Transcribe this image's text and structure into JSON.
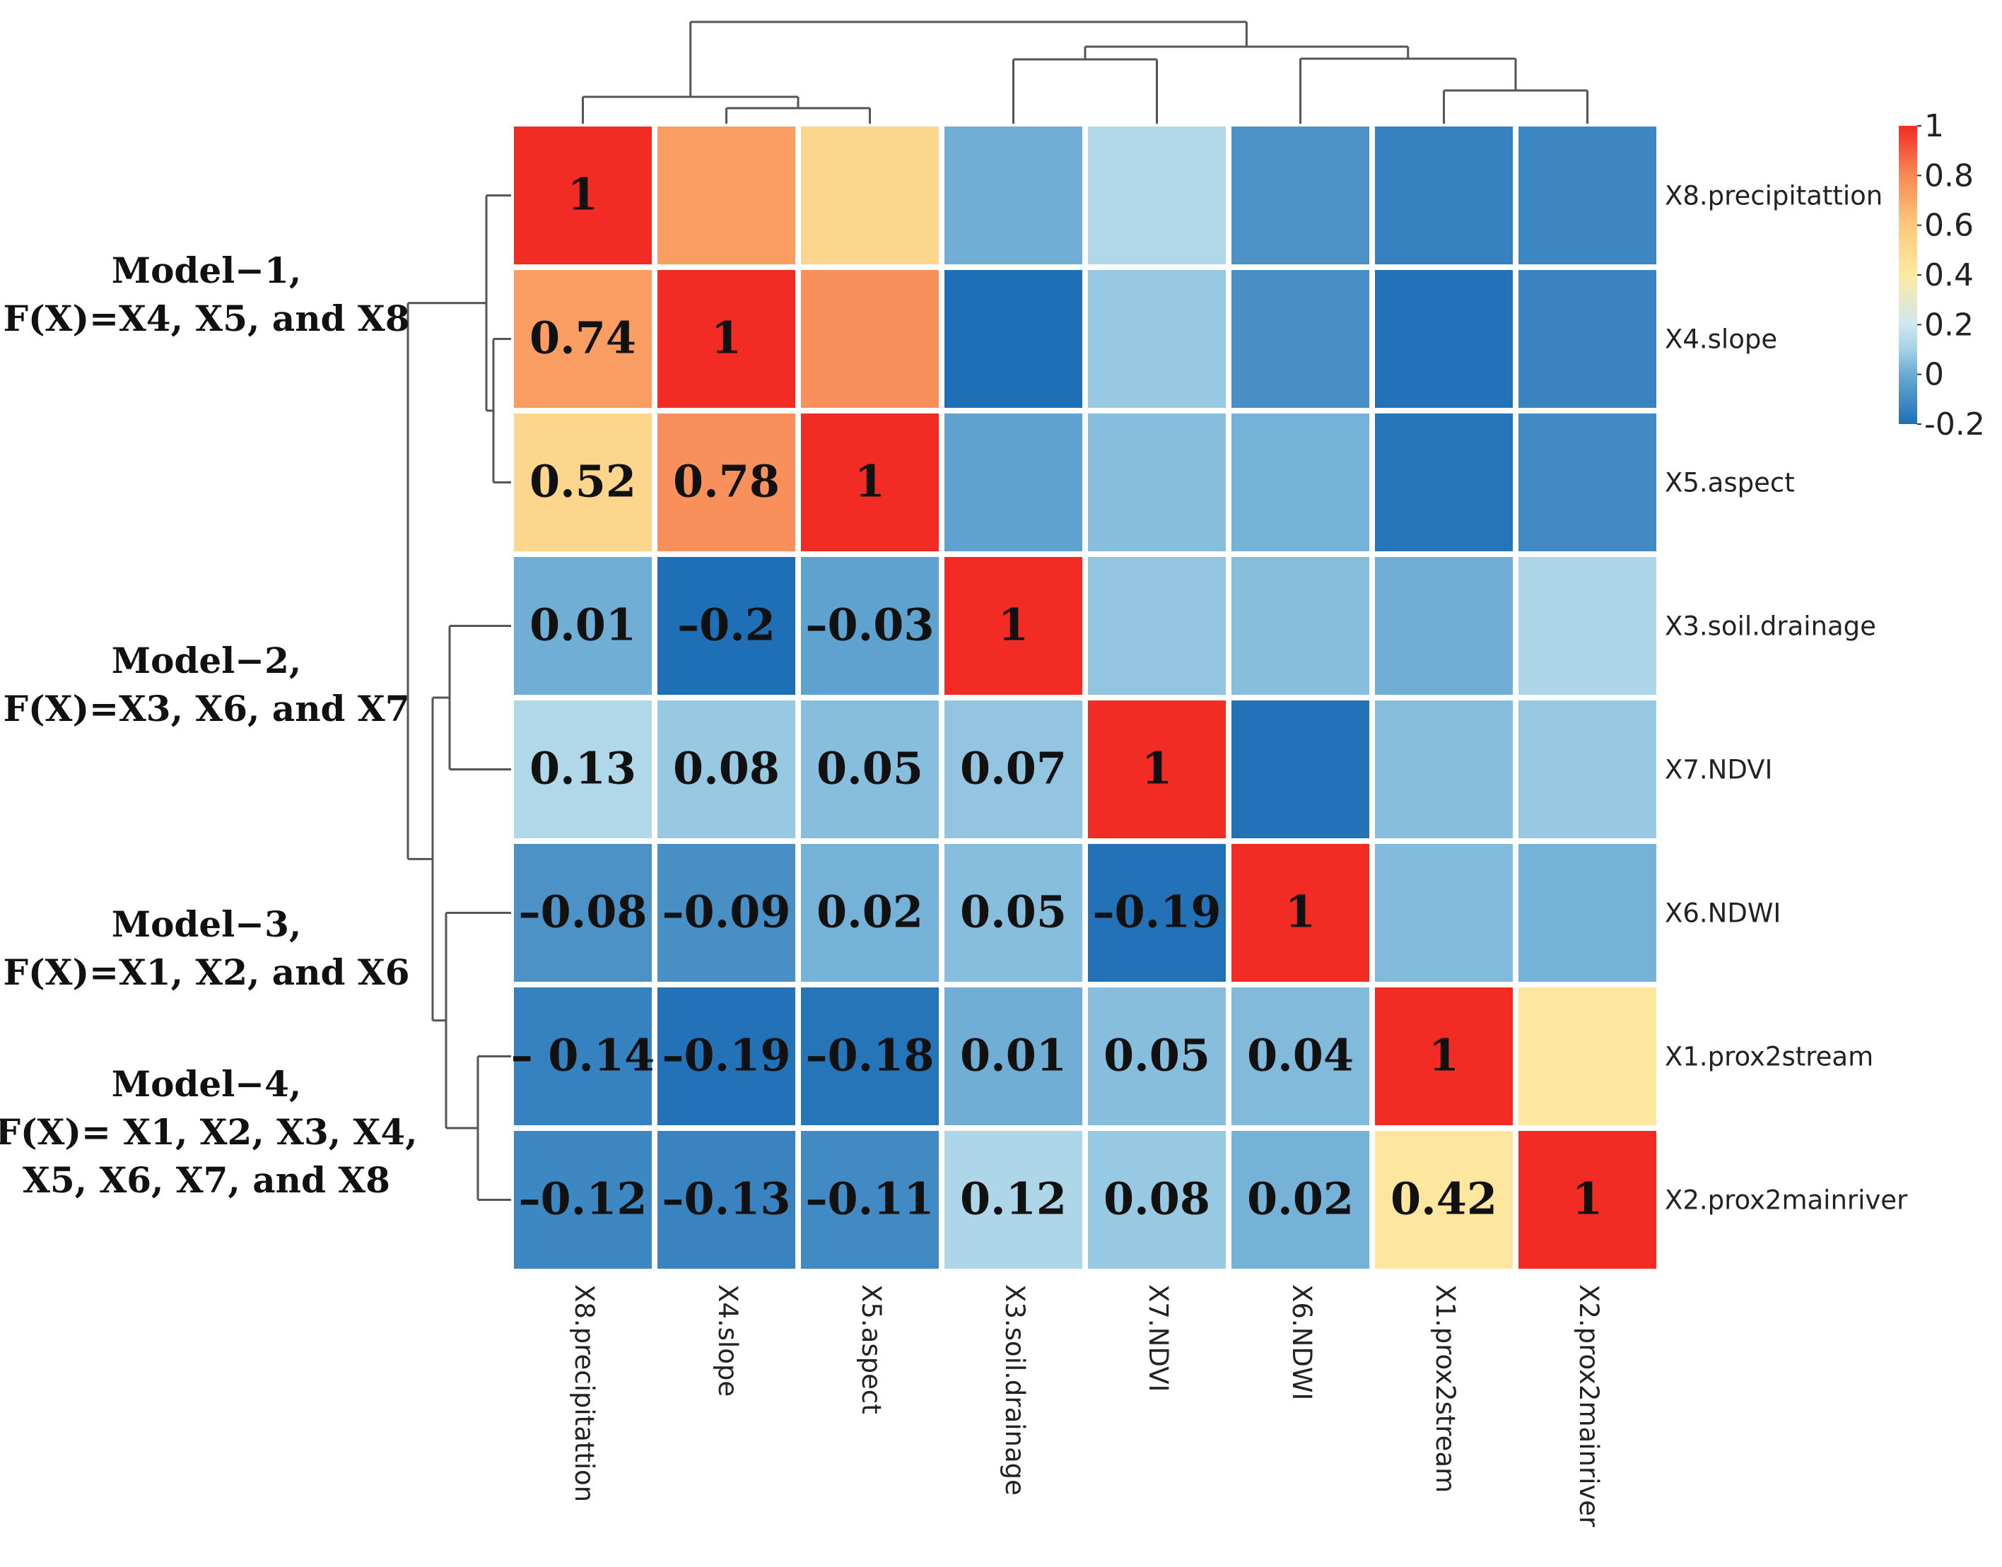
{
  "chart_data": {
    "type": "heatmap",
    "title": "",
    "row_labels": [
      "X8.precipitattion",
      "X4.slope",
      "X5.aspect",
      "X3.soil.drainage",
      "X7.NDVI",
      "X6.NDWI",
      "X1.prox2stream",
      "X2.prox2mainriver"
    ],
    "col_labels": [
      "X8.precipitattion",
      "X4.slope",
      "X5.aspect",
      "X3.soil.drainage",
      "X7.NDVI",
      "X6.NDWI",
      "X1.prox2stream",
      "X2.prox2mainriver"
    ],
    "values": [
      [
        1,
        0.74,
        0.52,
        0.01,
        0.13,
        -0.08,
        -0.14,
        -0.12
      ],
      [
        0.74,
        1,
        0.78,
        -0.2,
        0.08,
        -0.09,
        -0.19,
        -0.13
      ],
      [
        0.52,
        0.78,
        1,
        -0.03,
        0.05,
        0.02,
        -0.18,
        -0.11
      ],
      [
        0.01,
        -0.2,
        -0.03,
        1,
        0.07,
        0.05,
        0.01,
        0.12
      ],
      [
        0.13,
        0.08,
        0.05,
        0.07,
        1,
        -0.19,
        0.05,
        0.08
      ],
      [
        -0.08,
        -0.09,
        0.02,
        0.05,
        -0.19,
        1,
        0.04,
        0.02
      ],
      [
        -0.14,
        -0.19,
        -0.18,
        0.01,
        0.05,
        0.04,
        1,
        0.42
      ],
      [
        -0.12,
        -0.13,
        -0.11,
        0.12,
        0.08,
        0.02,
        0.42,
        1
      ]
    ],
    "cell_text": [
      [
        "1",
        "",
        "",
        "",
        "",
        "",
        "",
        ""
      ],
      [
        "0.74",
        "1",
        "",
        "",
        "",
        "",
        "",
        ""
      ],
      [
        "0.52",
        "0.78",
        "1",
        "",
        "",
        "",
        "",
        ""
      ],
      [
        "0.01",
        "–0.2",
        "–0.03",
        "1",
        "",
        "",
        "",
        ""
      ],
      [
        "0.13",
        "0.08",
        "0.05",
        "0.07",
        "1",
        "",
        "",
        ""
      ],
      [
        "–0.08",
        "–0.09",
        "0.02",
        "0.05",
        "–0.19",
        "1",
        "",
        ""
      ],
      [
        "– 0.14",
        "–0.19",
        "–0.18",
        "0.01",
        "0.05",
        "0.04",
        "1",
        ""
      ],
      [
        "–0.12",
        "–0.13",
        "–0.11",
        "0.12",
        "0.08",
        "0.02",
        "0.42",
        "1"
      ]
    ],
    "color_scale": {
      "range": [
        -0.2,
        1
      ],
      "ticks": [
        "1",
        "0.8",
        "0.6",
        "0.4",
        "0.2",
        "0",
        "-0.2"
      ],
      "stops": [
        {
          "value": -0.2,
          "color": "#1f6fb6"
        },
        {
          "value": 0.0,
          "color": "#6aaad3"
        },
        {
          "value": 0.1,
          "color": "#a4d1e6"
        },
        {
          "value": 0.2,
          "color": "#cfe8f0"
        },
        {
          "value": 0.4,
          "color": "#fde9a2"
        },
        {
          "value": 0.6,
          "color": "#fcc97d"
        },
        {
          "value": 0.8,
          "color": "#f98a57"
        },
        {
          "value": 1.0,
          "color": "#f22b25"
        }
      ]
    },
    "model_labels": [
      [
        "Model−1,",
        "F(X)=X4, X5, and X8"
      ],
      [
        "Model−2,",
        "F(X)=X3, X6, and X7"
      ],
      [
        "Model−3,",
        "F(X)=X1, X2, and X6"
      ],
      [
        "Model−4,",
        "F(X)= X1, X2, X3, X4,",
        "X5, X6, X7, and X8"
      ]
    ]
  }
}
